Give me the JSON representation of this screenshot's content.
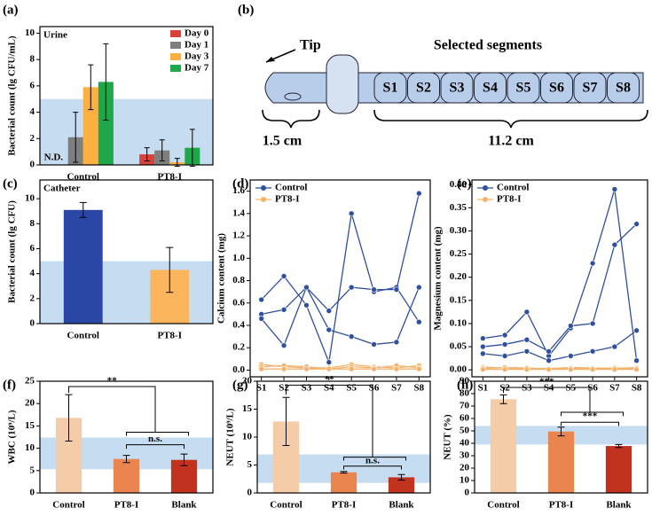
{
  "chart_data": [
    {
      "type": "bar",
      "panel": "(a)",
      "subtitle": "Urine",
      "ylabel": "Bacterial count (lg CFU/mL)",
      "categories": [
        "Control",
        "PT8-I"
      ],
      "series": [
        {
          "name": "Day 0",
          "color": "#d9423a",
          "values": [
            null,
            0.8
          ],
          "errors": [
            null,
            0.5
          ]
        },
        {
          "name": "Day 1",
          "color": "#7f7f7f",
          "values": [
            2.1,
            1.1
          ],
          "errors": [
            1.9,
            0.8
          ]
        },
        {
          "name": "Day 3",
          "color": "#fbb040",
          "values": [
            5.9,
            0.2
          ],
          "errors": [
            1.7,
            0.3
          ]
        },
        {
          "name": "Day 7",
          "color": "#1fa84a",
          "values": [
            6.3,
            1.3
          ],
          "errors": [
            2.9,
            1.4
          ]
        }
      ],
      "annotation": "N.D.",
      "band": [
        0,
        5
      ],
      "ylim": [
        0,
        10.5
      ],
      "yticks": [
        0,
        2,
        4,
        6,
        8,
        10
      ]
    },
    {
      "type": "bar",
      "panel": "(c)",
      "subtitle": "Catheter",
      "ylabel": "Bacterial count (lg CFU)",
      "categories": [
        "Control",
        "PT8-I"
      ],
      "values": [
        9.1,
        4.3
      ],
      "errors": [
        0.6,
        1.8
      ],
      "colors": [
        "#2b47a6",
        "#fbb55d"
      ],
      "band": [
        0,
        5
      ],
      "ylim": [
        0,
        11.5
      ],
      "yticks": [
        0,
        2,
        4,
        6,
        8,
        10
      ]
    },
    {
      "type": "line",
      "panel": "(d)",
      "ylabel": "Calcium content (mg)",
      "categories": [
        "S1",
        "S2",
        "S3",
        "S4",
        "S5",
        "S6",
        "S7",
        "S8"
      ],
      "series": [
        {
          "name": "Control",
          "color": "#2f4f9f",
          "values": [
            [
              0.63,
              0.84,
              0.58,
              0.07,
              1.4,
              0.7,
              0.74,
              0.43
            ],
            [
              0.5,
              0.54,
              0.74,
              0.53,
              0.74,
              0.72,
              0.72,
              1.58
            ],
            [
              0.46,
              0.22,
              0.74,
              0.36,
              0.3,
              0.23,
              0.25,
              0.74
            ]
          ]
        },
        {
          "name": "PT8-I",
          "color": "#f6b26b",
          "values": [
            [
              0.05,
              0.03,
              0.02,
              0.02,
              0.05,
              0.03,
              0.02,
              0.04
            ],
            [
              0.03,
              0.04,
              0.03,
              0.01,
              0.03,
              0.02,
              0.04,
              0.02
            ],
            [
              0.01,
              0.01,
              0.01,
              0.01,
              0.01,
              0.01,
              0.01,
              0.01
            ]
          ]
        }
      ],
      "ylim": [
        -0.06,
        1.7
      ],
      "yticks": [
        {
          "value": 0,
          "label": "0.0"
        },
        {
          "value": 0.2,
          "label": "0.2"
        },
        {
          "value": 0.4,
          "label": "0.4"
        },
        {
          "value": 0.6,
          "label": "0.6"
        },
        {
          "value": 0.8,
          "label": "0.8"
        },
        {
          "value": 1.0,
          "label": "1.0"
        },
        {
          "value": 1.2,
          "label": "1.2"
        },
        {
          "value": 1.4,
          "label": "1.4"
        },
        {
          "value": 1.6,
          "label": "1.6"
        }
      ]
    },
    {
      "type": "line",
      "panel": "(e)",
      "ylabel": "Magnesium content (mg)",
      "categories": [
        "S1",
        "S2",
        "S3",
        "S4",
        "S5",
        "S6",
        "S7",
        "S8"
      ],
      "series": [
        {
          "name": "Control",
          "color": "#2f4f9f",
          "values": [
            [
              0.068,
              0.075,
              0.125,
              0.03,
              0.09,
              0.23,
              0.39,
              0.02
            ],
            [
              0.05,
              0.055,
              0.065,
              0.04,
              0.095,
              0.1,
              0.27,
              0.315
            ],
            [
              0.035,
              0.03,
              0.04,
              0.02,
              0.03,
              0.04,
              0.05,
              0.085
            ]
          ]
        },
        {
          "name": "PT8-I",
          "color": "#f6b26b",
          "values": [
            [
              0.006,
              0.004,
              0.003,
              0.003,
              0.005,
              0.004,
              0.003,
              0.005
            ],
            [
              0.003,
              0.005,
              0.004,
              0.002,
              0.003,
              0.003,
              0.004,
              0.003
            ],
            [
              0.001,
              0.001,
              0.001,
              0.001,
              0.001,
              0.001,
              0.001,
              0.001
            ]
          ]
        }
      ],
      "ylim": [
        -0.015,
        0.41
      ],
      "yticks": [
        {
          "value": 0,
          "label": "0.00"
        },
        {
          "value": 0.05,
          "label": "0.05"
        },
        {
          "value": 0.1,
          "label": "0.10"
        },
        {
          "value": 0.15,
          "label": "0.15"
        },
        {
          "value": 0.2,
          "label": "0.20"
        },
        {
          "value": 0.25,
          "label": "0.25"
        },
        {
          "value": 0.3,
          "label": "0.30"
        },
        {
          "value": 0.35,
          "label": "0.35"
        },
        {
          "value": 0.4,
          "label": "0.40"
        }
      ]
    },
    {
      "type": "bar",
      "panel": "(f)",
      "ylabel": "WBC (10⁹/L)",
      "categories": [
        "Control",
        "PT8-I",
        "Blank"
      ],
      "values": [
        16.8,
        7.6,
        7.4
      ],
      "errors": [
        5.2,
        0.8,
        1.3
      ],
      "colors": [
        "#f5cca8",
        "#ea8550",
        "#c1321f"
      ],
      "band": [
        5.3,
        12.4
      ],
      "significance": [
        "**",
        "n.s."
      ],
      "ylim": [
        0,
        25
      ],
      "yticks": [
        0,
        5,
        10,
        15,
        20,
        25
      ]
    },
    {
      "type": "bar",
      "panel": "(g)",
      "ylabel": "NEUT (10⁹/L)",
      "categories": [
        "Control",
        "PT8-I",
        "Blank"
      ],
      "values": [
        12.8,
        3.7,
        2.8
      ],
      "errors": [
        4.3,
        0.15,
        0.5
      ],
      "colors": [
        "#f5cca8",
        "#ea8550",
        "#c1321f"
      ],
      "band": [
        1.8,
        6.9
      ],
      "significance": [
        "**",
        "n.s."
      ],
      "ylim": [
        0,
        20
      ],
      "yticks": [
        0,
        5,
        10,
        15,
        20
      ]
    },
    {
      "type": "bar",
      "panel": "(h)",
      "ylabel": "NEUT (%)",
      "categories": [
        "Control",
        "PT8-I",
        "Blank"
      ],
      "values": [
        75.5,
        49.5,
        37.8
      ],
      "errors": [
        3.5,
        3.5,
        1.2
      ],
      "colors": [
        "#f5cca8",
        "#ea8550",
        "#c1321f"
      ],
      "band": [
        39,
        54
      ],
      "significance": [
        "***",
        "***"
      ],
      "ylim": [
        0,
        90
      ],
      "yticks": [
        0,
        10,
        20,
        30,
        40,
        50,
        60,
        70,
        80,
        90
      ]
    }
  ],
  "diagram": {
    "panel": "(b)",
    "tip": "Tip",
    "title": "Selected segments",
    "segments": [
      "S1",
      "S2",
      "S3",
      "S4",
      "S5",
      "S6",
      "S7",
      "S8"
    ],
    "tip_length": "1.5 cm",
    "segments_length": "11.2 cm"
  }
}
